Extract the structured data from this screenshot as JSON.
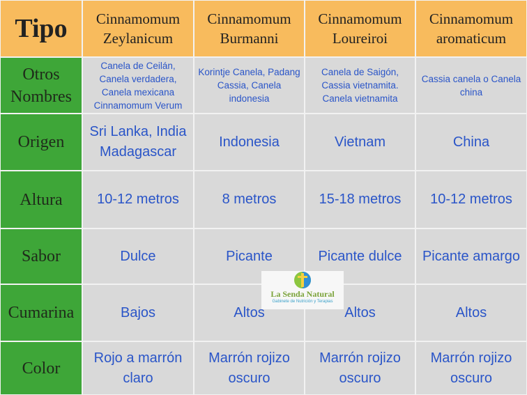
{
  "header": {
    "tipo": "Tipo",
    "species": [
      "Cinnamomum\nZeylanicum",
      "Cinnamomum\nBurmanni",
      "Cinnamomum\nLoureiroi",
      "Cinnamomum\naromaticum"
    ]
  },
  "rows": [
    {
      "label": "Otros\nNombres",
      "values": [
        "Canela de Ceilán,\nCanela verdadera,\nCanela mexicana\nCinnamomum Verum",
        "Korintje Canela, Padang\nCassia, Canela\nindonesia",
        "Canela de Saigón,\nCassia vietnamita.\nCanela vietnamita",
        "Cassia canela o Canela\nchina"
      ]
    },
    {
      "label": "Origen",
      "values": [
        "Sri Lanka, India\nMadagascar",
        "Indonesia",
        "Vietnam",
        "China"
      ]
    },
    {
      "label": "Altura",
      "values": [
        "10-12 metros",
        "8 metros",
        "15-18 metros",
        "10-12 metros"
      ]
    },
    {
      "label": "Sabor",
      "values": [
        "Dulce",
        "Picante",
        "Picante dulce",
        "Picante amargo"
      ]
    },
    {
      "label": "Cumarina",
      "values": [
        "Bajos",
        "Altos",
        "Altos",
        "Altos"
      ]
    },
    {
      "label": "Color",
      "values": [
        "Rojo a marrón\nclaro",
        "Marrón rojizo\noscuro",
        "Marrón rojizo\noscuro",
        "Marrón rojizo\noscuro"
      ]
    }
  ],
  "logo": {
    "name": "La Senda Natural",
    "subtitle": "Gabinete de Nutrición y Terapias"
  },
  "colors": {
    "header": "#f8bb5d",
    "label": "#3ea638",
    "cell": "#d9d9d9",
    "text": "#2a55c8"
  }
}
